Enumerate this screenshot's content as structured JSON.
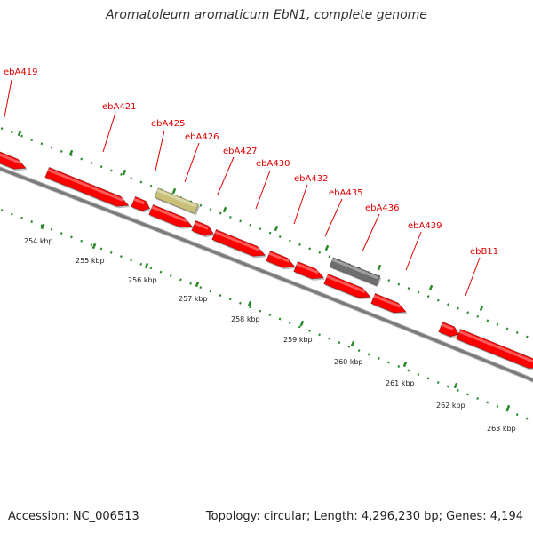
{
  "title": "Aromatoleum aromaticum EbN1, complete genome",
  "footer": {
    "accession": "Accession: NC_006513",
    "summary": "Topology: circular; Length: 4,296,230 bp; Genes: 4,194"
  },
  "colors": {
    "gene_forward": "#ff0000",
    "gene_other": "#6e6e6e",
    "gene_rna": "#c8c078",
    "backbone": "#7a7a7a",
    "tick": "#2a8a2a",
    "label": "#dd0000",
    "kbp_text": "#222222"
  },
  "scale": {
    "ticks": [
      {
        "label": "254 kbp"
      },
      {
        "label": "255 kbp"
      },
      {
        "label": "256 kbp"
      },
      {
        "label": "257 kbp"
      },
      {
        "label": "258 kbp"
      },
      {
        "label": "259 kbp"
      },
      {
        "label": "260 kbp"
      },
      {
        "label": "261 kbp"
      },
      {
        "label": "262 kbp"
      },
      {
        "label": "263 kbp"
      }
    ]
  },
  "gene_labels": [
    {
      "name": "ebA419"
    },
    {
      "name": "ebA421"
    },
    {
      "name": "ebA425"
    },
    {
      "name": "ebA426"
    },
    {
      "name": "ebA427"
    },
    {
      "name": "ebA430"
    },
    {
      "name": "ebA432"
    },
    {
      "name": "ebA435"
    },
    {
      "name": "ebA436"
    },
    {
      "name": "ebA439"
    },
    {
      "name": "ebB11"
    }
  ]
}
